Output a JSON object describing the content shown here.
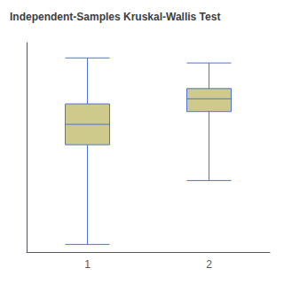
{
  "chart_data": {
    "type": "box",
    "title": "Independent-Samples Kruskal-Wallis Test",
    "categories": [
      "1",
      "2"
    ],
    "values": [
      [
        3,
        42,
        50,
        58,
        76
      ],
      [
        28,
        55,
        60,
        64,
        74
      ]
    ],
    "color": "#ceca8b",
    "ylim": [
      0,
      82
    ],
    "grid": false,
    "tick_labels": "x"
  }
}
